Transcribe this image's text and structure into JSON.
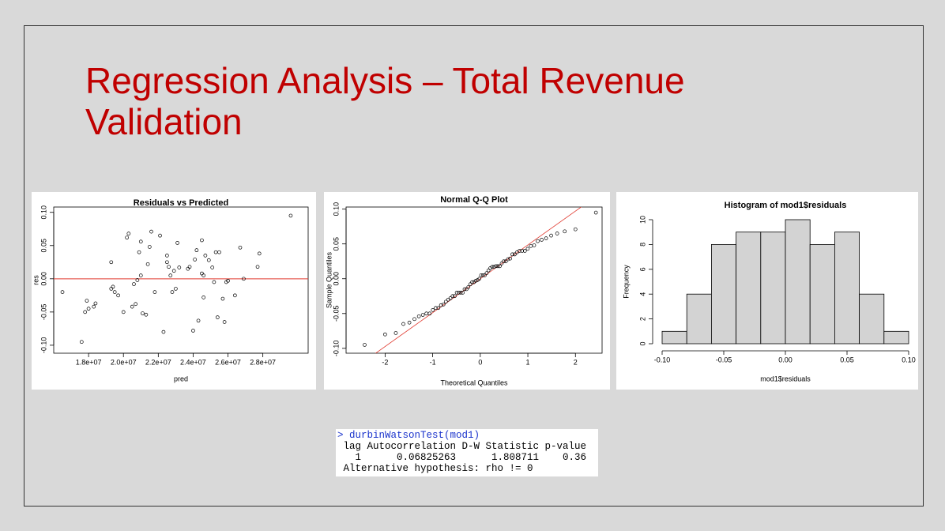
{
  "slide_title": [
    "Regression Analysis – Total Revenue",
    "Validation"
  ],
  "chart_data": [
    {
      "type": "scatter",
      "title": "Residuals vs Predicted",
      "x_label": "pred",
      "y_label": "res",
      "x": [
        16500000.0,
        17600000.0,
        17800000.0,
        17900000.0,
        18000000.0,
        18300000.0,
        18400000.0,
        19300000.0,
        19300000.0,
        19400000.0,
        19500000.0,
        19700000.0,
        20000000.0,
        20200000.0,
        20300000.0,
        20500000.0,
        20600000.0,
        20700000.0,
        20800000.0,
        20900000.0,
        21000000.0,
        21000000.0,
        21100000.0,
        21300000.0,
        21400000.0,
        21500000.0,
        21600000.0,
        21800000.0,
        22100000.0,
        22300000.0,
        22500000.0,
        22500000.0,
        22600000.0,
        22700000.0,
        22800000.0,
        22900000.0,
        23000000.0,
        23100000.0,
        23200000.0,
        23700000.0,
        23800000.0,
        24000000.0,
        24100000.0,
        24200000.0,
        24300000.0,
        24500000.0,
        24500000.0,
        24600000.0,
        24600000.0,
        24700000.0,
        24900000.0,
        25100000.0,
        25200000.0,
        25300000.0,
        25400000.0,
        25500000.0,
        25700000.0,
        25800000.0,
        25900000.0,
        26000000.0,
        26400000.0,
        26700000.0,
        26900000.0,
        27700000.0,
        27800000.0,
        29600000.0
      ],
      "values": [
        -0.02,
        -0.095,
        -0.05,
        -0.033,
        -0.045,
        -0.042,
        -0.037,
        0.025,
        -0.015,
        -0.012,
        -0.02,
        -0.025,
        -0.05,
        0.062,
        0.068,
        -0.042,
        -0.008,
        -0.038,
        -0.002,
        0.04,
        0.005,
        0.056,
        -0.052,
        -0.054,
        0.022,
        0.048,
        0.071,
        -0.02,
        0.065,
        -0.08,
        0.035,
        0.025,
        0.018,
        0.005,
        -0.02,
        0.012,
        -0.015,
        0.054,
        0.017,
        0.015,
        0.018,
        -0.078,
        0.029,
        0.043,
        -0.063,
        0.058,
        0.008,
        0.005,
        -0.028,
        0.035,
        0.028,
        0.017,
        -0.005,
        0.04,
        -0.058,
        0.04,
        -0.03,
        -0.065,
        -0.005,
        -0.003,
        -0.025,
        0.047,
        0,
        0.018,
        0.038,
        0.095
      ],
      "color": "#000000",
      "hline": 0,
      "hline_color": "#e0392f",
      "xlim": [
        16000000.0,
        30600000.0
      ],
      "xticks": [
        {
          "value": 18000000.0,
          "label": "1.8e+07"
        },
        {
          "value": 20000000.0,
          "label": "2.0e+07"
        },
        {
          "value": 22000000.0,
          "label": "2.2e+07"
        },
        {
          "value": 24000000.0,
          "label": "2.4e+07"
        },
        {
          "value": 26000000.0,
          "label": "2.6e+07"
        },
        {
          "value": 28000000.0,
          "label": "2.8e+07"
        }
      ],
      "ylim": [
        -0.112,
        0.108
      ],
      "yticks": [
        {
          "value": -0.1,
          "label": "-0.10"
        },
        {
          "value": -0.05,
          "label": "-0.05"
        },
        {
          "value": 0,
          "label": "0.00"
        },
        {
          "value": 0.05,
          "label": "0.05"
        },
        {
          "value": 0.1,
          "label": "0.10"
        }
      ]
    },
    {
      "type": "scatter",
      "title": "Normal Q-Q Plot",
      "x_label": "Theoretical Quantiles",
      "y_label": "Sample Quantiles",
      "x": [
        -2.43,
        -2.0,
        -1.775,
        -1.616,
        -1.49,
        -1.383,
        -1.29,
        -1.207,
        -1.132,
        -1.063,
        -0.998,
        -0.937,
        -0.88,
        -0.825,
        -0.773,
        -0.723,
        -0.674,
        -0.627,
        -0.582,
        -0.537,
        -0.494,
        -0.451,
        -0.41,
        -0.369,
        -0.329,
        -0.289,
        -0.25,
        -0.21,
        -0.172,
        -0.133,
        -0.095,
        -0.057,
        -0.019,
        0.019,
        0.057,
        0.095,
        0.133,
        0.172,
        0.21,
        0.25,
        0.289,
        0.329,
        0.369,
        0.41,
        0.451,
        0.494,
        0.537,
        0.582,
        0.627,
        0.674,
        0.723,
        0.773,
        0.825,
        0.88,
        0.937,
        0.998,
        1.063,
        1.132,
        1.207,
        1.29,
        1.383,
        1.49,
        1.616,
        1.775,
        2.0,
        2.43
      ],
      "values": [
        -0.095,
        -0.08,
        -0.078,
        -0.065,
        -0.063,
        -0.058,
        -0.054,
        -0.052,
        -0.05,
        -0.05,
        -0.045,
        -0.042,
        -0.042,
        -0.038,
        -0.037,
        -0.033,
        -0.03,
        -0.028,
        -0.025,
        -0.025,
        -0.02,
        -0.02,
        -0.02,
        -0.02,
        -0.015,
        -0.015,
        -0.012,
        -0.008,
        -0.005,
        -0.005,
        -0.003,
        -0.002,
        0,
        0.005,
        0.005,
        0.005,
        0.008,
        0.012,
        0.015,
        0.017,
        0.017,
        0.018,
        0.018,
        0.018,
        0.022,
        0.025,
        0.025,
        0.028,
        0.029,
        0.035,
        0.035,
        0.038,
        0.04,
        0.04,
        0.04,
        0.043,
        0.047,
        0.048,
        0.054,
        0.056,
        0.058,
        0.062,
        0.065,
        0.068,
        0.071,
        0.095
      ],
      "color": "#000000",
      "reference_line": {
        "x": [
          -2.3,
          2.1
        ],
        "y": [
          -0.112,
          0.102
        ]
      },
      "hline_color": "#e0392f",
      "xlim": [
        -2.82,
        2.56
      ],
      "xticks": [
        -2,
        -1,
        0,
        1,
        2
      ],
      "ylim": [
        -0.107,
        0.103
      ],
      "yticks": [
        {
          "value": -0.1,
          "label": "-0.10"
        },
        {
          "value": -0.05,
          "label": "-0.05"
        },
        {
          "value": 0,
          "label": "0.00"
        },
        {
          "value": 0.05,
          "label": "0.05"
        },
        {
          "value": 0.1,
          "label": "0.10"
        }
      ]
    },
    {
      "type": "histogram",
      "title": "Histogram of mod1$residuals",
      "x_label": "mod1$residuals",
      "y_label": "Frequency",
      "bins": [
        -0.1,
        -0.08,
        -0.06,
        -0.04,
        -0.02,
        0,
        0.02,
        0.04,
        0.06,
        0.08,
        0.1
      ],
      "values": [
        1,
        4,
        8,
        9,
        9,
        10,
        8,
        9,
        4,
        1
      ],
      "color": "#d3d3d3",
      "xlim": [
        -0.1,
        0.1
      ],
      "xticks": [
        {
          "value": -0.1,
          "label": "-0.10"
        },
        {
          "value": -0.05,
          "label": "-0.05"
        },
        {
          "value": 0,
          "label": "0.00"
        },
        {
          "value": 0.05,
          "label": "0.05"
        },
        {
          "value": 0.1,
          "label": "0.10"
        }
      ],
      "ylim": [
        0,
        10
      ],
      "yticks": [
        0,
        2,
        4,
        6,
        8,
        10
      ]
    }
  ],
  "console": {
    "command": "> durbinWatsonTest(mod1)",
    "lines": [
      " lag Autocorrelation D-W Statistic p-value",
      "   1      0.06825263      1.808711    0.36",
      " Alternative hypothesis: rho != 0"
    ]
  }
}
